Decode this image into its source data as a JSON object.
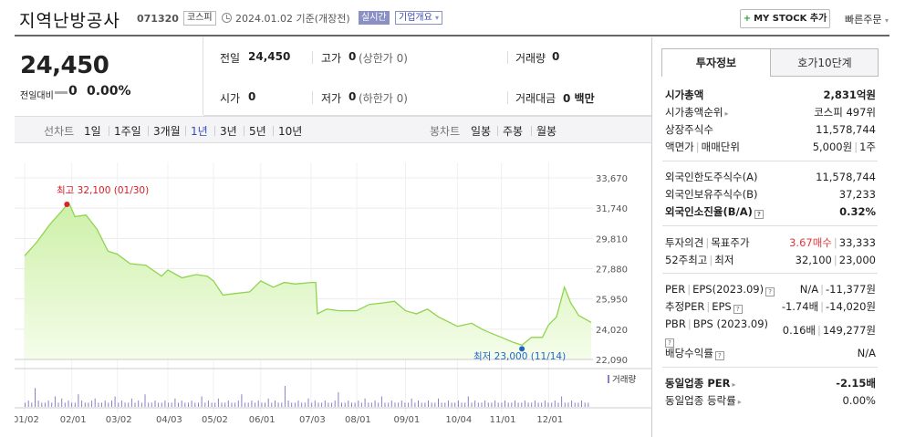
{
  "header": {
    "name": "지역난방공사",
    "code": "071320",
    "market": "코스피",
    "date": "2024.01.02 기준(개장전)",
    "realtime": "실시간",
    "overview": "기업개요",
    "overview_arrow": "▾",
    "mystock_plus": "+",
    "mystock": "MY STOCK 추가",
    "quick_order": "빠른주문",
    "quick_order_arrow": "▾"
  },
  "price": {
    "current": "24,450",
    "change_label": "전일대비",
    "change": "0",
    "change_pct": "0.00%"
  },
  "stats": {
    "prev_label": "전일",
    "prev": "24,450",
    "high_label": "고가",
    "high": "0",
    "high_sub": "(상한가 0)",
    "volume_label": "거래량",
    "volume": "0",
    "open_label": "시가",
    "open": "0",
    "low_label": "저가",
    "low": "0",
    "low_sub": "(하한가 0)",
    "amount_label": "거래대금",
    "amount": "0 백만"
  },
  "period_bar": {
    "line_label": "선차트",
    "line_items": [
      "1일",
      "1주일",
      "3개월",
      "1년",
      "3년",
      "5년",
      "10년"
    ],
    "active_index": 3,
    "candle_label": "봉차트",
    "candle_items": [
      "일봉",
      "주봉",
      "월봉"
    ]
  },
  "chart_data": {
    "type": "area",
    "y_ticks": [
      "33,670",
      "31,740",
      "29,810",
      "27,880",
      "25,950",
      "24,020",
      "22,090"
    ],
    "y_tick_values": [
      33670,
      31740,
      29810,
      27880,
      25950,
      24020,
      22090
    ],
    "x_ticks": [
      "01/02",
      "02/01",
      "03/02",
      "04/03",
      "05/02",
      "06/01",
      "07/03",
      "08/01",
      "09/01",
      "10/04",
      "11/01",
      "12/01"
    ],
    "volume_label": "거래량",
    "high_annotation": "최고 32,100 (01/30)",
    "low_annotation": "최저 23,000 (11/14)",
    "high_point": {
      "date": "01/30",
      "value": 32100
    },
    "low_point": {
      "date": "11/14",
      "value": 23000
    },
    "series": [
      {
        "date": "01/02",
        "value": 28700
      },
      {
        "date": "01/10",
        "value": 29600
      },
      {
        "date": "01/18",
        "value": 30700
      },
      {
        "date": "01/26",
        "value": 31600
      },
      {
        "date": "01/30",
        "value": 32100
      },
      {
        "date": "02/03",
        "value": 31200
      },
      {
        "date": "02/10",
        "value": 31300
      },
      {
        "date": "02/17",
        "value": 30400
      },
      {
        "date": "02/24",
        "value": 29000
      },
      {
        "date": "03/02",
        "value": 28800
      },
      {
        "date": "03/10",
        "value": 28200
      },
      {
        "date": "03/20",
        "value": 28100
      },
      {
        "date": "03/30",
        "value": 27400
      },
      {
        "date": "04/03",
        "value": 27800
      },
      {
        "date": "04/12",
        "value": 27300
      },
      {
        "date": "04/21",
        "value": 27500
      },
      {
        "date": "04/28",
        "value": 27400
      },
      {
        "date": "05/02",
        "value": 27100
      },
      {
        "date": "05/08",
        "value": 26200
      },
      {
        "date": "05/16",
        "value": 26300
      },
      {
        "date": "05/25",
        "value": 26400
      },
      {
        "date": "06/01",
        "value": 27100
      },
      {
        "date": "06/09",
        "value": 26700
      },
      {
        "date": "06/16",
        "value": 27000
      },
      {
        "date": "06/23",
        "value": 26900
      },
      {
        "date": "07/03",
        "value": 27000
      },
      {
        "date": "07/06",
        "value": 27000
      },
      {
        "date": "07/07",
        "value": 25000
      },
      {
        "date": "07/13",
        "value": 25300
      },
      {
        "date": "07/21",
        "value": 25200
      },
      {
        "date": "08/01",
        "value": 25200
      },
      {
        "date": "08/09",
        "value": 25600
      },
      {
        "date": "08/18",
        "value": 25700
      },
      {
        "date": "08/25",
        "value": 25800
      },
      {
        "date": "09/01",
        "value": 25200
      },
      {
        "date": "09/08",
        "value": 25000
      },
      {
        "date": "09/15",
        "value": 25300
      },
      {
        "date": "09/22",
        "value": 24800
      },
      {
        "date": "10/04",
        "value": 24200
      },
      {
        "date": "10/13",
        "value": 24400
      },
      {
        "date": "10/20",
        "value": 24000
      },
      {
        "date": "10/27",
        "value": 23700
      },
      {
        "date": "11/01",
        "value": 23500
      },
      {
        "date": "11/08",
        "value": 23200
      },
      {
        "date": "11/14",
        "value": 23000
      },
      {
        "date": "11/20",
        "value": 23500
      },
      {
        "date": "11/27",
        "value": 23500
      },
      {
        "date": "12/01",
        "value": 24300
      },
      {
        "date": "12/06",
        "value": 24800
      },
      {
        "date": "12/11",
        "value": 26700
      },
      {
        "date": "12/15",
        "value": 25700
      },
      {
        "date": "12/20",
        "value": 24900
      },
      {
        "date": "12/28",
        "value": 24450
      }
    ],
    "volume_bars": [
      2,
      3,
      2,
      9,
      3,
      2,
      2,
      3,
      2,
      5,
      2,
      4,
      2,
      3,
      2,
      2,
      6,
      3,
      2,
      2,
      3,
      4,
      2,
      2,
      3,
      2,
      3,
      5,
      2,
      3,
      2,
      2,
      4,
      2,
      3,
      2,
      6,
      2,
      2,
      3,
      2,
      2,
      3,
      2,
      2,
      4,
      2,
      3,
      2,
      2,
      3,
      2,
      2,
      5,
      2,
      3,
      2,
      2,
      4,
      2,
      2,
      3,
      2,
      2,
      3,
      6,
      2,
      2,
      3,
      2,
      3,
      2,
      2,
      4,
      2,
      3,
      2,
      2,
      10,
      3,
      2,
      2,
      3,
      2,
      2,
      4,
      2,
      3,
      2,
      2,
      3,
      2,
      2,
      3,
      7,
      2,
      2,
      3,
      2,
      2,
      3,
      2,
      4,
      2,
      2,
      3,
      2,
      5,
      2,
      2,
      3,
      2,
      2,
      3,
      2,
      2,
      4,
      2,
      3,
      2,
      2,
      3,
      2,
      2,
      4,
      2,
      2,
      3,
      2,
      2,
      3,
      2,
      2,
      5,
      2,
      3,
      2,
      2,
      3,
      2,
      2,
      3,
      2,
      2,
      3,
      2,
      2,
      3,
      2,
      2,
      3,
      2,
      2,
      3,
      2,
      2,
      3,
      2,
      2,
      3,
      2,
      5,
      2,
      2,
      3,
      2,
      2,
      3,
      2,
      2
    ]
  },
  "right_panel": {
    "tab_invest": "투자정보",
    "tab_orderbook": "호가10단계",
    "market_cap_label": "시가총액",
    "market_cap": "2,831억원",
    "market_cap_rank_label": "시가총액순위",
    "market_cap_rank": "코스피 497위",
    "shares_label": "상장주식수",
    "shares": "11,578,744",
    "face_label": "액면가",
    "face_sep": "|",
    "unit_label": "매매단위",
    "face_value": "5,000원",
    "unit_value": "1주",
    "foreign_limit_label": "외국인한도주식수(A)",
    "foreign_limit": "11,578,744",
    "foreign_hold_label": "외국인보유주식수(B)",
    "foreign_hold": "37,233",
    "foreign_ratio_label": "외국인소진율(B/A)",
    "foreign_ratio": "0.32%",
    "opinion_label": "투자의견",
    "target_label": "목표주가",
    "opinion": "3.67매수",
    "target": "33,333",
    "w52_label": "52주최고",
    "w52_low_label": "최저",
    "w52_high": "32,100",
    "w52_low": "23,000",
    "per_label": "PER",
    "eps_label": "EPS(2023.09)",
    "per": "N/A",
    "eps": "-11,377원",
    "est_per_label": "추정PER",
    "est_eps_label": "EPS",
    "est_per": "-1.74배",
    "est_eps": "-14,020원",
    "pbr_label": "PBR",
    "bps_label": "BPS",
    "bps_date": "(2023.09)",
    "pbr": "0.16배",
    "bps": "149,277원",
    "dividend_label": "배당수익률",
    "dividend": "N/A",
    "sector_per_label": "동일업종 PER",
    "sector_per": "-2.15배",
    "sector_chg_label": "동일업종 등락률",
    "sector_chg": "0.00%",
    "pipe": "|",
    "help": "?",
    "arrow": "▸"
  }
}
